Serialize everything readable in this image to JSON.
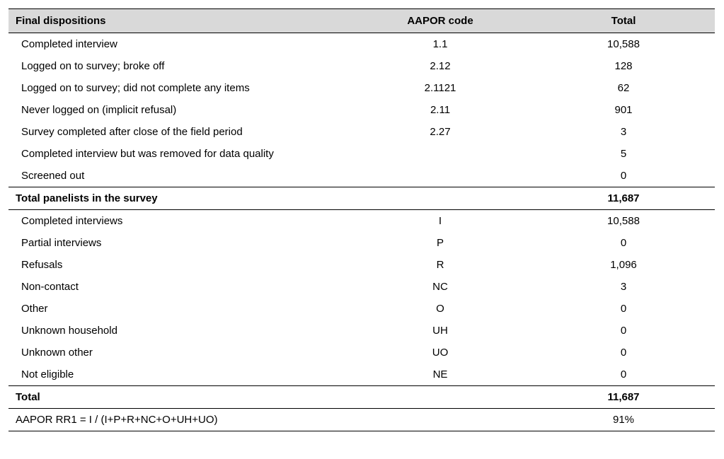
{
  "table": {
    "headers": {
      "col1": "Final dispositions",
      "col2": "AAPOR code",
      "col3": "Total"
    },
    "section1": [
      {
        "label": "Completed interview",
        "code": "1.1",
        "total": "10,588"
      },
      {
        "label": "Logged on to survey; broke off",
        "code": "2.12",
        "total": "128"
      },
      {
        "label": "Logged on to survey; did not complete any items",
        "code": "2.1121",
        "total": "62"
      },
      {
        "label": "Never logged on (implicit refusal)",
        "code": "2.11",
        "total": "901"
      },
      {
        "label": "Survey completed after close of the field period",
        "code": "2.27",
        "total": "3"
      },
      {
        "label": "Completed interview but was removed for data quality",
        "code": "",
        "total": "5"
      },
      {
        "label": "Screened out",
        "code": "",
        "total": "0"
      }
    ],
    "section1_total": {
      "label": "Total panelists in the survey",
      "code": "",
      "total": "11,687"
    },
    "section2": [
      {
        "label": "Completed interviews",
        "code": "I",
        "total": "10,588"
      },
      {
        "label": "Partial interviews",
        "code": "P",
        "total": "0"
      },
      {
        "label": "Refusals",
        "code": "R",
        "total": "1,096"
      },
      {
        "label": "Non-contact",
        "code": "NC",
        "total": "3"
      },
      {
        "label": "Other",
        "code": "O",
        "total": "0"
      },
      {
        "label": "Unknown household",
        "code": "UH",
        "total": "0"
      },
      {
        "label": "Unknown other",
        "code": "UO",
        "total": "0"
      },
      {
        "label": "Not eligible",
        "code": "NE",
        "total": "0"
      }
    ],
    "section2_total": {
      "label": "Total",
      "code": "",
      "total": "11,687"
    },
    "footer": {
      "label": "AAPOR RR1 = I / (I+P+R+NC+O+UH+UO)",
      "code": "",
      "total": "91%"
    }
  }
}
